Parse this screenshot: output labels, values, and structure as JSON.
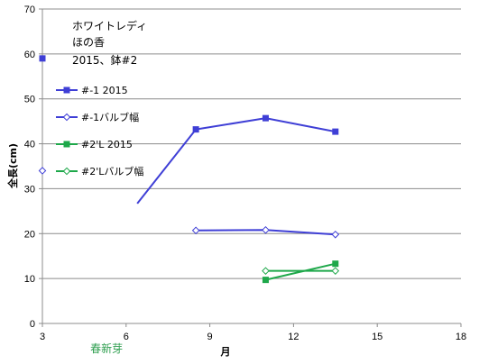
{
  "chart_data": {
    "type": "line",
    "title_lines": [
      "ホワイトレディ",
      "ほの香",
      "2015、鉢#2"
    ],
    "xlabel": "月",
    "ylabel": "全長(cm)",
    "xlim": [
      3,
      18
    ],
    "ylim": [
      0,
      70
    ],
    "xticks": [
      3,
      6,
      9,
      12,
      15,
      18
    ],
    "yticks": [
      0,
      10,
      20,
      30,
      40,
      50,
      60,
      70
    ],
    "grid": "horizontal",
    "legend_position": "left",
    "annotation": {
      "text": "春新芽",
      "x": 5.3,
      "color": "#2e9e4f"
    },
    "series": [
      {
        "name": "#-1 2015",
        "color": "#3f3fd6",
        "marker": "square-filled",
        "points": [
          [
            3.0,
            59.0
          ],
          [
            8.5,
            43.2
          ],
          [
            11.0,
            45.7
          ],
          [
            13.5,
            42.7
          ]
        ],
        "gap_after": [
          0
        ],
        "lead_in": {
          "from": [
            6.4,
            26.7
          ],
          "to": [
            8.5,
            43.2
          ]
        }
      },
      {
        "name": "#-1バルブ幅",
        "color": "#3f3fd6",
        "marker": "diamond-open",
        "points": [
          [
            3.0,
            34.0
          ],
          [
            8.5,
            20.7
          ],
          [
            11.0,
            20.8
          ],
          [
            13.5,
            19.8
          ]
        ],
        "gap_after": [
          0
        ]
      },
      {
        "name": "#2'L 2015",
        "color": "#1ea84a",
        "marker": "square-filled",
        "points": [
          [
            11.0,
            9.7
          ],
          [
            13.5,
            13.3
          ]
        ],
        "gap_after": []
      },
      {
        "name": "#2'Lバルブ幅",
        "color": "#1ea84a",
        "marker": "diamond-open",
        "points": [
          [
            11.0,
            11.7
          ],
          [
            13.5,
            11.7
          ]
        ],
        "gap_after": []
      }
    ]
  }
}
